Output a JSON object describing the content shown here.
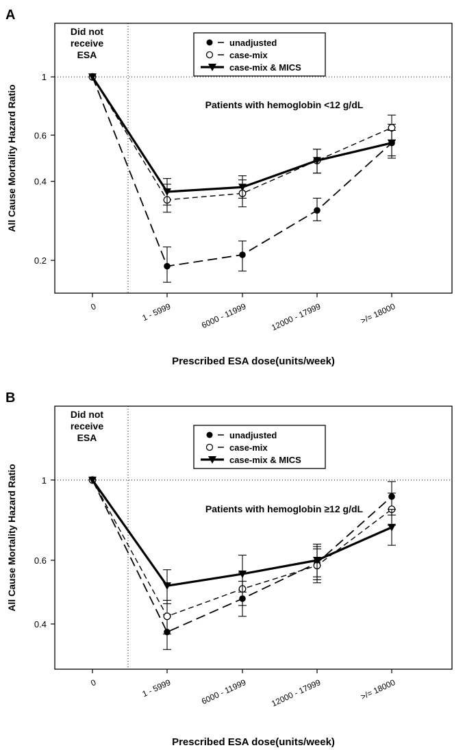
{
  "chart_data": [
    {
      "type": "line",
      "panel_label": "A",
      "annotation_left": [
        "Did not",
        "receive",
        "ESA"
      ],
      "annotation_center": "Patients with hemoglobin <12 g/dL",
      "xlabel": "Prescribed ESA dose(units/week)",
      "ylabel": "All Cause Mortality Hazard Ratio",
      "categories": [
        "0",
        "1 - 5999",
        "6000 - 11999",
        "12000 - 17999",
        ">/= 18000"
      ],
      "y_scale": "log",
      "yticks": [
        0.2,
        0.4,
        0.6,
        1
      ],
      "ytick_labels": [
        "0.2",
        "0.4",
        "0.6",
        "1"
      ],
      "ylim": [
        0.15,
        1.6
      ],
      "legend_position": "top-center",
      "reference_line_y": 1,
      "series": [
        {
          "name": "unadjusted",
          "style": "long-dash",
          "marker": "filled-circle",
          "values": [
            1,
            0.19,
            0.21,
            0.31,
            0.56
          ],
          "lower": [
            null,
            0.165,
            0.182,
            0.283,
            0.49
          ],
          "upper": [
            null,
            0.225,
            0.237,
            0.345,
            0.66
          ]
        },
        {
          "name": "case-mix",
          "style": "short-dash",
          "marker": "open-circle",
          "values": [
            1,
            0.34,
            0.36,
            0.48,
            0.64
          ],
          "lower": [
            null,
            0.305,
            0.32,
            0.43,
            0.575
          ],
          "upper": [
            null,
            0.39,
            0.405,
            0.53,
            0.715
          ]
        },
        {
          "name": "case-mix & MICS",
          "style": "solid-thick",
          "marker": "filled-triangle-down",
          "values": [
            1,
            0.365,
            0.38,
            0.48,
            0.56
          ],
          "lower": [
            null,
            0.325,
            0.345,
            0.43,
            0.5
          ],
          "upper": [
            null,
            0.41,
            0.42,
            0.53,
            0.625
          ]
        }
      ]
    },
    {
      "type": "line",
      "panel_label": "B",
      "annotation_left": [
        "Did not",
        "receive",
        "ESA"
      ],
      "annotation_center": "Patients with hemoglobin ≥12 g/dL",
      "xlabel": "Prescribed ESA dose(units/week)",
      "ylabel": "All Cause Mortality Hazard Ratio",
      "categories": [
        "0",
        "1 - 5999",
        "6000 - 11999",
        "12000 - 17999",
        ">/= 18000"
      ],
      "y_scale": "log",
      "yticks": [
        0.4,
        0.6,
        1
      ],
      "ytick_labels": [
        "0.4",
        "0.6",
        "1"
      ],
      "ylim": [
        0.3,
        1.6
      ],
      "legend_position": "top-center",
      "reference_line_y": 1,
      "series": [
        {
          "name": "unadjusted",
          "style": "long-dash",
          "marker": "filled-circle",
          "values": [
            1,
            0.38,
            0.47,
            0.59,
            0.9
          ],
          "lower": [
            null,
            0.34,
            0.42,
            0.53,
            0.8
          ],
          "upper": [
            null,
            0.425,
            0.525,
            0.655,
            0.99
          ]
        },
        {
          "name": "case-mix",
          "style": "short-dash",
          "marker": "open-circle",
          "values": [
            1,
            0.42,
            0.5,
            0.58,
            0.83
          ],
          "lower": [
            null,
            0.375,
            0.45,
            0.52,
            0.75
          ],
          "upper": [
            null,
            0.465,
            0.555,
            0.645,
            0.92
          ]
        },
        {
          "name": "case-mix & MICS",
          "style": "solid-thick",
          "marker": "filled-triangle-down",
          "values": [
            1,
            0.51,
            0.55,
            0.6,
            0.74
          ],
          "lower": [
            null,
            0.455,
            0.49,
            0.54,
            0.66
          ],
          "upper": [
            null,
            0.565,
            0.62,
            0.665,
            0.83
          ]
        }
      ]
    }
  ]
}
